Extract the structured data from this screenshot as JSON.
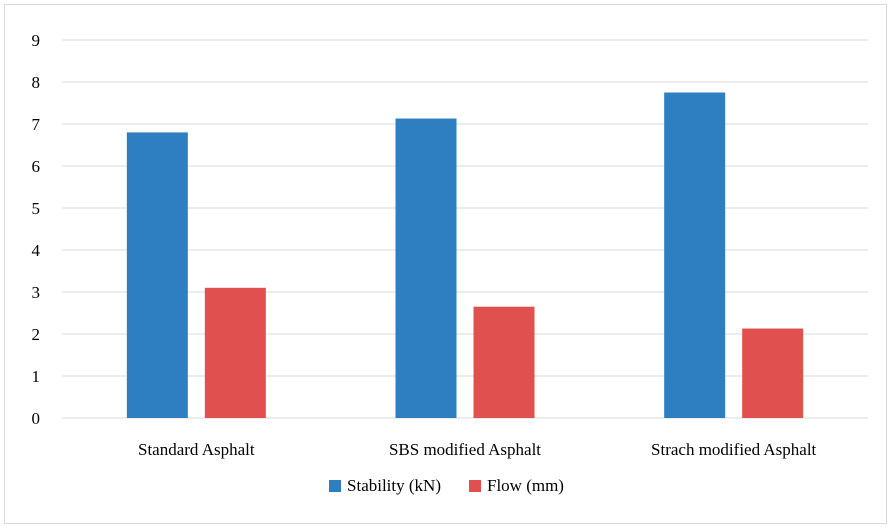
{
  "chart_data": {
    "type": "bar",
    "categories": [
      "Standard Asphalt",
      "SBS modified Asphalt",
      "Strach modified Asphalt"
    ],
    "series": [
      {
        "name": "Stability (kN)",
        "values": [
          6.8,
          7.13,
          7.75
        ],
        "color": "#2E7FC1"
      },
      {
        "name": "Flow (mm)",
        "values": [
          3.1,
          2.65,
          2.13
        ],
        "color": "#E0504E"
      }
    ],
    "title": "",
    "xlabel": "",
    "ylabel": "",
    "ylim": [
      0,
      9
    ],
    "yticks": [
      "0",
      "1",
      "2",
      "3",
      "4",
      "5",
      "6",
      "7",
      "8",
      "9"
    ],
    "grid": true,
    "legend_position": "bottom"
  }
}
